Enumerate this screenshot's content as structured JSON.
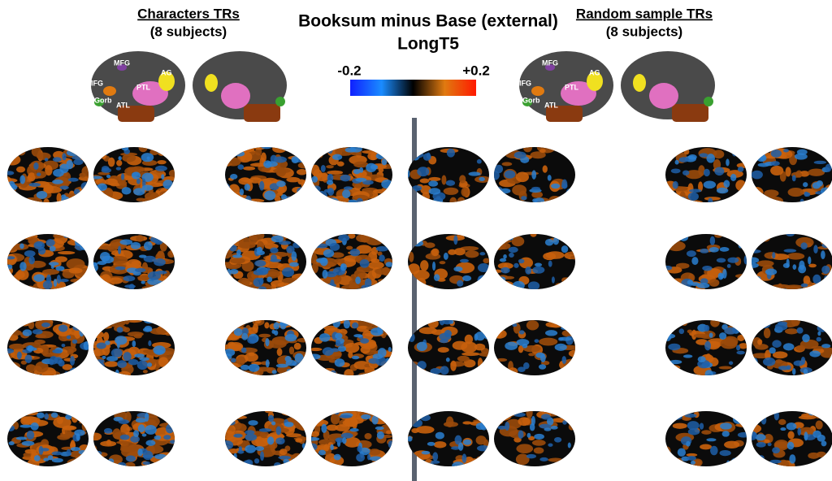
{
  "title": [
    "Booksum minus Base (external)",
    "LongT5"
  ],
  "colorbar": {
    "min_label": "-0.2",
    "max_label": "+0.2"
  },
  "panels": [
    {
      "heading": "Characters TRs",
      "subheading": "(8 subjects)",
      "roi_labels": [
        "MFG",
        "IFG",
        "IFGorb",
        "ATL",
        "PTL",
        "AG"
      ]
    },
    {
      "heading": "Random sample TRs",
      "subheading": "(8 subjects)",
      "roi_labels": [
        "MFG",
        "IFG",
        "IFGorb",
        "ATL",
        "PTL",
        "AG"
      ]
    }
  ]
}
